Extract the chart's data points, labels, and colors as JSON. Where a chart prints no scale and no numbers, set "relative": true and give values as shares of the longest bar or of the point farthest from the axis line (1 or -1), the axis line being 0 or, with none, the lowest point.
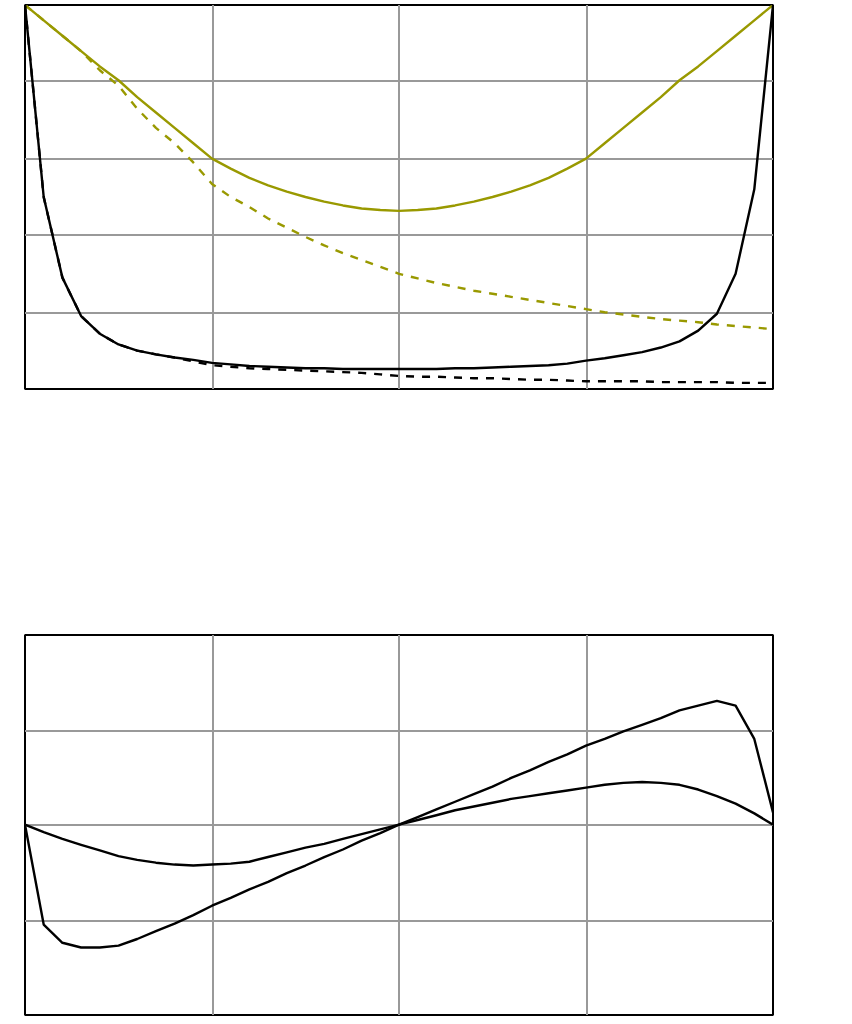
{
  "chart_data": [
    {
      "type": "line",
      "relative": true,
      "grid": true,
      "categories": [
        null,
        null,
        null,
        null,
        null,
        null,
        null,
        null,
        null,
        null,
        null,
        null,
        null,
        null,
        null,
        null,
        null,
        null,
        null,
        null,
        null,
        null,
        null,
        null,
        null,
        null,
        null,
        null,
        null,
        null,
        null,
        null,
        null,
        null,
        null,
        null,
        null,
        null,
        null,
        null,
        null
      ],
      "series": [
        {
          "color": "#999900",
          "line_style": "solid",
          "values": [
            1.0,
            0.96,
            0.92,
            0.88,
            0.84,
            0.804,
            0.76,
            0.72,
            0.68,
            0.64,
            0.6,
            0.574,
            0.55,
            0.53,
            0.514,
            0.5,
            0.488,
            0.478,
            0.47,
            0.466,
            0.464,
            0.466,
            0.47,
            0.478,
            0.488,
            0.5,
            0.514,
            0.53,
            0.55,
            0.574,
            0.6,
            0.64,
            0.68,
            0.72,
            0.76,
            0.804,
            0.84,
            0.88,
            0.92,
            0.96,
            1.0
          ]
        },
        {
          "color": "#999900",
          "line_style": "dashed",
          "values": [
            1.0,
            0.96,
            0.92,
            0.88,
            0.83,
            0.79,
            0.73,
            0.68,
            0.64,
            0.59,
            0.534,
            0.5,
            0.474,
            0.444,
            0.42,
            0.396,
            0.374,
            0.354,
            0.336,
            0.318,
            0.3,
            0.288,
            0.276,
            0.266,
            0.256,
            0.248,
            0.24,
            0.232,
            0.224,
            0.216,
            0.208,
            0.2,
            0.194,
            0.188,
            0.182,
            0.178,
            0.174,
            0.168,
            0.164,
            0.16,
            0.156
          ]
        },
        {
          "color": "#000000",
          "line_style": "solid",
          "values": [
            1.0,
            0.5,
            0.29,
            0.19,
            0.144,
            0.116,
            0.1,
            0.09,
            0.082,
            0.076,
            0.068,
            0.064,
            0.06,
            0.058,
            0.056,
            0.054,
            0.054,
            0.052,
            0.052,
            0.052,
            0.052,
            0.052,
            0.052,
            0.054,
            0.054,
            0.056,
            0.058,
            0.06,
            0.062,
            0.066,
            0.074,
            0.08,
            0.088,
            0.096,
            0.108,
            0.124,
            0.152,
            0.196,
            0.3,
            0.52,
            1.0
          ]
        },
        {
          "color": "#000000",
          "line_style": "dashed",
          "values": [
            1.0,
            0.5,
            0.29,
            0.19,
            0.144,
            0.116,
            0.1,
            0.09,
            0.082,
            0.072,
            0.062,
            0.058,
            0.054,
            0.052,
            0.05,
            0.048,
            0.046,
            0.044,
            0.042,
            0.038,
            0.034,
            0.032,
            0.032,
            0.03,
            0.028,
            0.028,
            0.026,
            0.024,
            0.024,
            0.022,
            0.02,
            0.02,
            0.02,
            0.02,
            0.018,
            0.018,
            0.018,
            0.018,
            0.016,
            0.016,
            0.016
          ]
        }
      ]
    },
    {
      "type": "line",
      "relative": true,
      "grid": true,
      "categories": [
        null,
        null,
        null,
        null,
        null,
        null,
        null,
        null,
        null,
        null,
        null,
        null,
        null,
        null,
        null,
        null,
        null,
        null,
        null,
        null,
        null,
        null,
        null,
        null,
        null,
        null,
        null,
        null,
        null,
        null,
        null,
        null,
        null,
        null,
        null,
        null,
        null,
        null,
        null,
        null,
        null
      ],
      "series": [
        {
          "color": "#000000",
          "line_style": "solid",
          "values": [
            0.606,
            0.288,
            0.23,
            0.215,
            0.215,
            0.221,
            0.242,
            0.267,
            0.291,
            0.318,
            0.348,
            0.373,
            0.4,
            0.424,
            0.452,
            0.476,
            0.503,
            0.527,
            0.555,
            0.579,
            0.606,
            0.63,
            0.655,
            0.679,
            0.703,
            0.727,
            0.755,
            0.779,
            0.806,
            0.83,
            0.858,
            0.879,
            0.903,
            0.924,
            0.945,
            0.97,
            0.985,
            1.0,
            0.985,
            0.879,
            0.645
          ]
        },
        {
          "color": "#000000",
          "line_style": "solid",
          "values": [
            0.606,
            0.582,
            0.561,
            0.542,
            0.524,
            0.506,
            0.494,
            0.485,
            0.479,
            0.476,
            0.479,
            0.482,
            0.488,
            0.503,
            0.518,
            0.533,
            0.545,
            0.561,
            0.576,
            0.591,
            0.606,
            0.621,
            0.636,
            0.652,
            0.664,
            0.676,
            0.688,
            0.697,
            0.706,
            0.715,
            0.724,
            0.733,
            0.739,
            0.742,
            0.739,
            0.733,
            0.718,
            0.697,
            0.673,
            0.642,
            0.606
          ]
        }
      ]
    }
  ]
}
